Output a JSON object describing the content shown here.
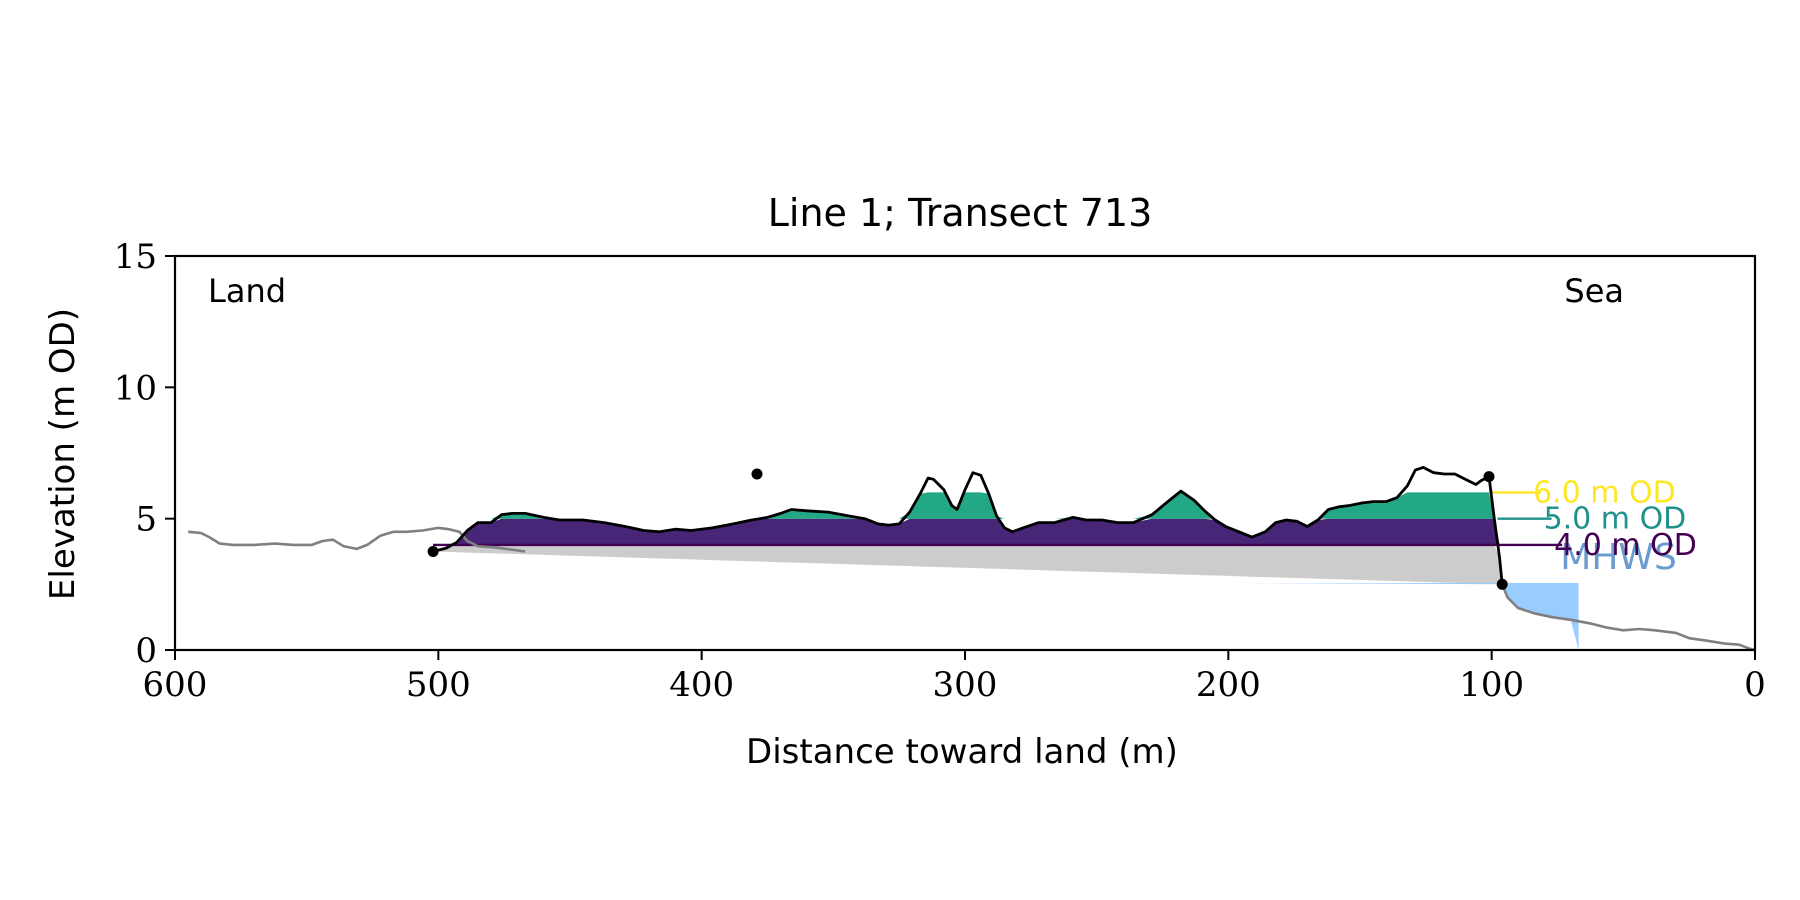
{
  "chart_data": {
    "type": "area",
    "title": "Line 1; Transect 713",
    "xlabel": "Distance toward land (m)",
    "ylabel": "Elevation (m OD)",
    "xlim": [
      600,
      0
    ],
    "ylim": [
      0,
      15
    ],
    "xticks": [
      {
        "value": 600,
        "label": "600"
      },
      {
        "value": 500,
        "label": "500"
      },
      {
        "value": 400,
        "label": "400"
      },
      {
        "value": 300,
        "label": "300"
      },
      {
        "value": 200,
        "label": "200"
      },
      {
        "value": 100,
        "label": "100"
      },
      {
        "value": 0,
        "label": "0"
      }
    ],
    "yticks": [
      {
        "value": 0,
        "label": "0"
      },
      {
        "value": 5,
        "label": "5"
      },
      {
        "value": 10,
        "label": "10"
      },
      {
        "value": 15,
        "label": "15"
      }
    ],
    "corner_labels": {
      "left": "Land",
      "right": "Sea"
    },
    "grid": false,
    "profile_landward": [
      [
        595,
        4.5
      ],
      [
        590,
        4.45
      ],
      [
        587,
        4.3
      ],
      [
        583,
        4.05
      ],
      [
        578,
        4.0
      ],
      [
        570,
        4.0
      ],
      [
        562,
        4.05
      ],
      [
        555,
        4.0
      ],
      [
        548,
        4.0
      ],
      [
        544,
        4.15
      ],
      [
        540,
        4.2
      ],
      [
        536,
        3.95
      ],
      [
        531,
        3.85
      ],
      [
        527,
        4.0
      ],
      [
        522,
        4.35
      ],
      [
        517,
        4.5
      ],
      [
        512,
        4.5
      ],
      [
        506,
        4.55
      ],
      [
        500,
        4.65
      ],
      [
        496,
        4.6
      ],
      [
        492,
        4.5
      ],
      [
        489,
        4.15
      ],
      [
        485,
        3.95
      ],
      [
        478,
        3.9
      ],
      [
        472,
        3.82
      ],
      [
        467,
        3.75
      ]
    ],
    "profile_dune": [
      [
        502,
        3.75
      ],
      [
        497,
        3.88
      ],
      [
        493,
        4.1
      ],
      [
        489,
        4.55
      ],
      [
        485,
        4.85
      ],
      [
        480,
        4.85
      ],
      [
        476,
        5.15
      ],
      [
        472,
        5.2
      ],
      [
        467,
        5.2
      ],
      [
        460,
        5.05
      ],
      [
        454,
        4.95
      ],
      [
        445,
        4.95
      ],
      [
        437,
        4.85
      ],
      [
        429,
        4.7
      ],
      [
        422,
        4.55
      ],
      [
        416,
        4.5
      ],
      [
        410,
        4.6
      ],
      [
        404,
        4.55
      ],
      [
        396,
        4.65
      ],
      [
        388,
        4.8
      ],
      [
        381,
        4.95
      ],
      [
        375,
        5.05
      ],
      [
        370,
        5.2
      ],
      [
        366,
        5.35
      ],
      [
        360,
        5.3
      ],
      [
        352,
        5.25
      ],
      [
        344,
        5.1
      ],
      [
        338,
        5.0
      ],
      [
        333,
        4.8
      ],
      [
        329,
        4.75
      ],
      [
        325,
        4.8
      ],
      [
        321,
        5.25
      ],
      [
        317,
        5.95
      ],
      [
        314,
        6.55
      ],
      [
        312,
        6.5
      ],
      [
        308,
        6.1
      ],
      [
        305,
        5.5
      ],
      [
        303,
        5.35
      ],
      [
        300,
        6.1
      ],
      [
        297,
        6.75
      ],
      [
        294,
        6.65
      ],
      [
        291,
        5.95
      ],
      [
        288,
        5.1
      ],
      [
        285,
        4.65
      ],
      [
        282,
        4.5
      ],
      [
        278,
        4.65
      ],
      [
        272,
        4.85
      ],
      [
        266,
        4.85
      ],
      [
        259,
        5.05
      ],
      [
        254,
        4.95
      ],
      [
        248,
        4.95
      ],
      [
        242,
        4.85
      ],
      [
        236,
        4.85
      ],
      [
        229,
        5.15
      ],
      [
        223,
        5.65
      ],
      [
        218,
        6.05
      ],
      [
        213,
        5.7
      ],
      [
        209,
        5.3
      ],
      [
        205,
        4.95
      ],
      [
        201,
        4.7
      ],
      [
        196,
        4.5
      ],
      [
        191,
        4.3
      ],
      [
        186,
        4.5
      ],
      [
        182,
        4.85
      ],
      [
        178,
        4.95
      ],
      [
        174,
        4.9
      ],
      [
        170,
        4.7
      ],
      [
        166,
        4.95
      ],
      [
        162,
        5.35
      ],
      [
        158,
        5.45
      ],
      [
        154,
        5.5
      ],
      [
        149,
        5.6
      ],
      [
        145,
        5.65
      ],
      [
        140,
        5.65
      ],
      [
        136,
        5.8
      ],
      [
        132,
        6.25
      ],
      [
        129,
        6.85
      ],
      [
        126,
        6.95
      ],
      [
        122,
        6.75
      ],
      [
        118,
        6.7
      ],
      [
        114,
        6.7
      ],
      [
        110,
        6.5
      ],
      [
        106,
        6.3
      ],
      [
        104,
        6.45
      ],
      [
        101,
        6.6
      ]
    ],
    "profile_cliff": [
      [
        101,
        6.6
      ],
      [
        99,
        5.0
      ],
      [
        97,
        3.5
      ],
      [
        96,
        2.5
      ]
    ],
    "profile_foreshore": [
      [
        96,
        2.5
      ],
      [
        94,
        2.0
      ],
      [
        90,
        1.6
      ],
      [
        84,
        1.4
      ],
      [
        77,
        1.25
      ],
      [
        70,
        1.15
      ],
      [
        62,
        1.0
      ],
      [
        56,
        0.85
      ],
      [
        50,
        0.75
      ],
      [
        44,
        0.8
      ],
      [
        38,
        0.75
      ],
      [
        30,
        0.65
      ],
      [
        25,
        0.45
      ],
      [
        18,
        0.35
      ],
      [
        12,
        0.25
      ],
      [
        6,
        0.2
      ],
      [
        2,
        0.05
      ],
      [
        0,
        0.0
      ]
    ],
    "markers": [
      [
        502,
        3.75
      ],
      [
        379,
        6.7
      ],
      [
        101,
        6.6
      ],
      [
        96,
        2.5
      ]
    ],
    "toe_line": {
      "from": [
        502,
        3.75
      ],
      "to": [
        96,
        2.5
      ]
    },
    "thresholds": [
      {
        "value": 6.0,
        "label": "6.0 m OD",
        "color": "#fde725",
        "fill": null
      },
      {
        "value": 5.0,
        "label": "5.0 m OD",
        "color": "#21918c",
        "fill": "#22a884"
      },
      {
        "value": 4.0,
        "label": "4.0 m OD",
        "color": "#440154",
        "fill": "#482677"
      }
    ],
    "mhws": {
      "label": "MHWS",
      "value": 2.55,
      "x_from": 198,
      "x_to": 67,
      "color": "#99ccff",
      "label_color": "#6b9bcf"
    },
    "colors": {
      "profile": "#000000",
      "profile_outer": "#808080",
      "below_toe": "#cccccc",
      "axes": "#000000"
    }
  }
}
